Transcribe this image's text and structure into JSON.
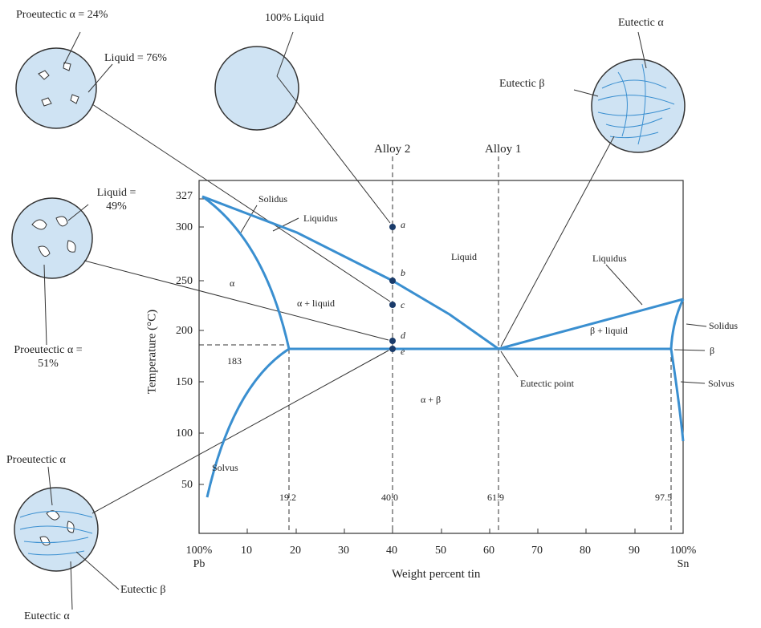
{
  "axes": {
    "y_label": "Temperature (°C)",
    "x_label": "Weight percent tin",
    "y_ticks": [
      "327",
      "300",
      "250",
      "200",
      "150",
      "100",
      "50"
    ],
    "x_ticks": [
      "100% Pb",
      "10",
      "20",
      "30",
      "40",
      "50",
      "60",
      "70",
      "80",
      "90",
      "100% Sn"
    ]
  },
  "reference_values": [
    "19.2",
    "40.0",
    "61.9",
    "97.5",
    "183"
  ],
  "alloys": [
    "Alloy 2",
    "Alloy 1"
  ],
  "points": [
    "a",
    "b",
    "c",
    "d",
    "e"
  ],
  "regions": {
    "alpha": "α",
    "alpha_liquid": "α + liquid",
    "liquid": "Liquid",
    "beta_liquid": "β + liquid",
    "alpha_beta": "α + β",
    "beta": "β"
  },
  "boundaries": {
    "solidus_left": "Solidus",
    "liquidus_left": "Liquidus",
    "liquidus_right": "Liquidus",
    "solidus_right": "Solidus",
    "solvus_right": "Solvus",
    "solvus_left": "Solvus",
    "eutectic_point": "Eutectic point"
  },
  "microstructures": {
    "top_left": [
      "Proeutectic α = 24%",
      "Liquid = 76%"
    ],
    "top_middle": [
      "100% Liquid"
    ],
    "top_right": [
      "Eutectic α",
      "Eutectic β"
    ],
    "middle_left": [
      "Liquid = 49%",
      "Proeutectic α = 51%"
    ],
    "bottom_left": [
      "Proeutectic α",
      "Eutectic β",
      "Eutectic α"
    ]
  }
}
